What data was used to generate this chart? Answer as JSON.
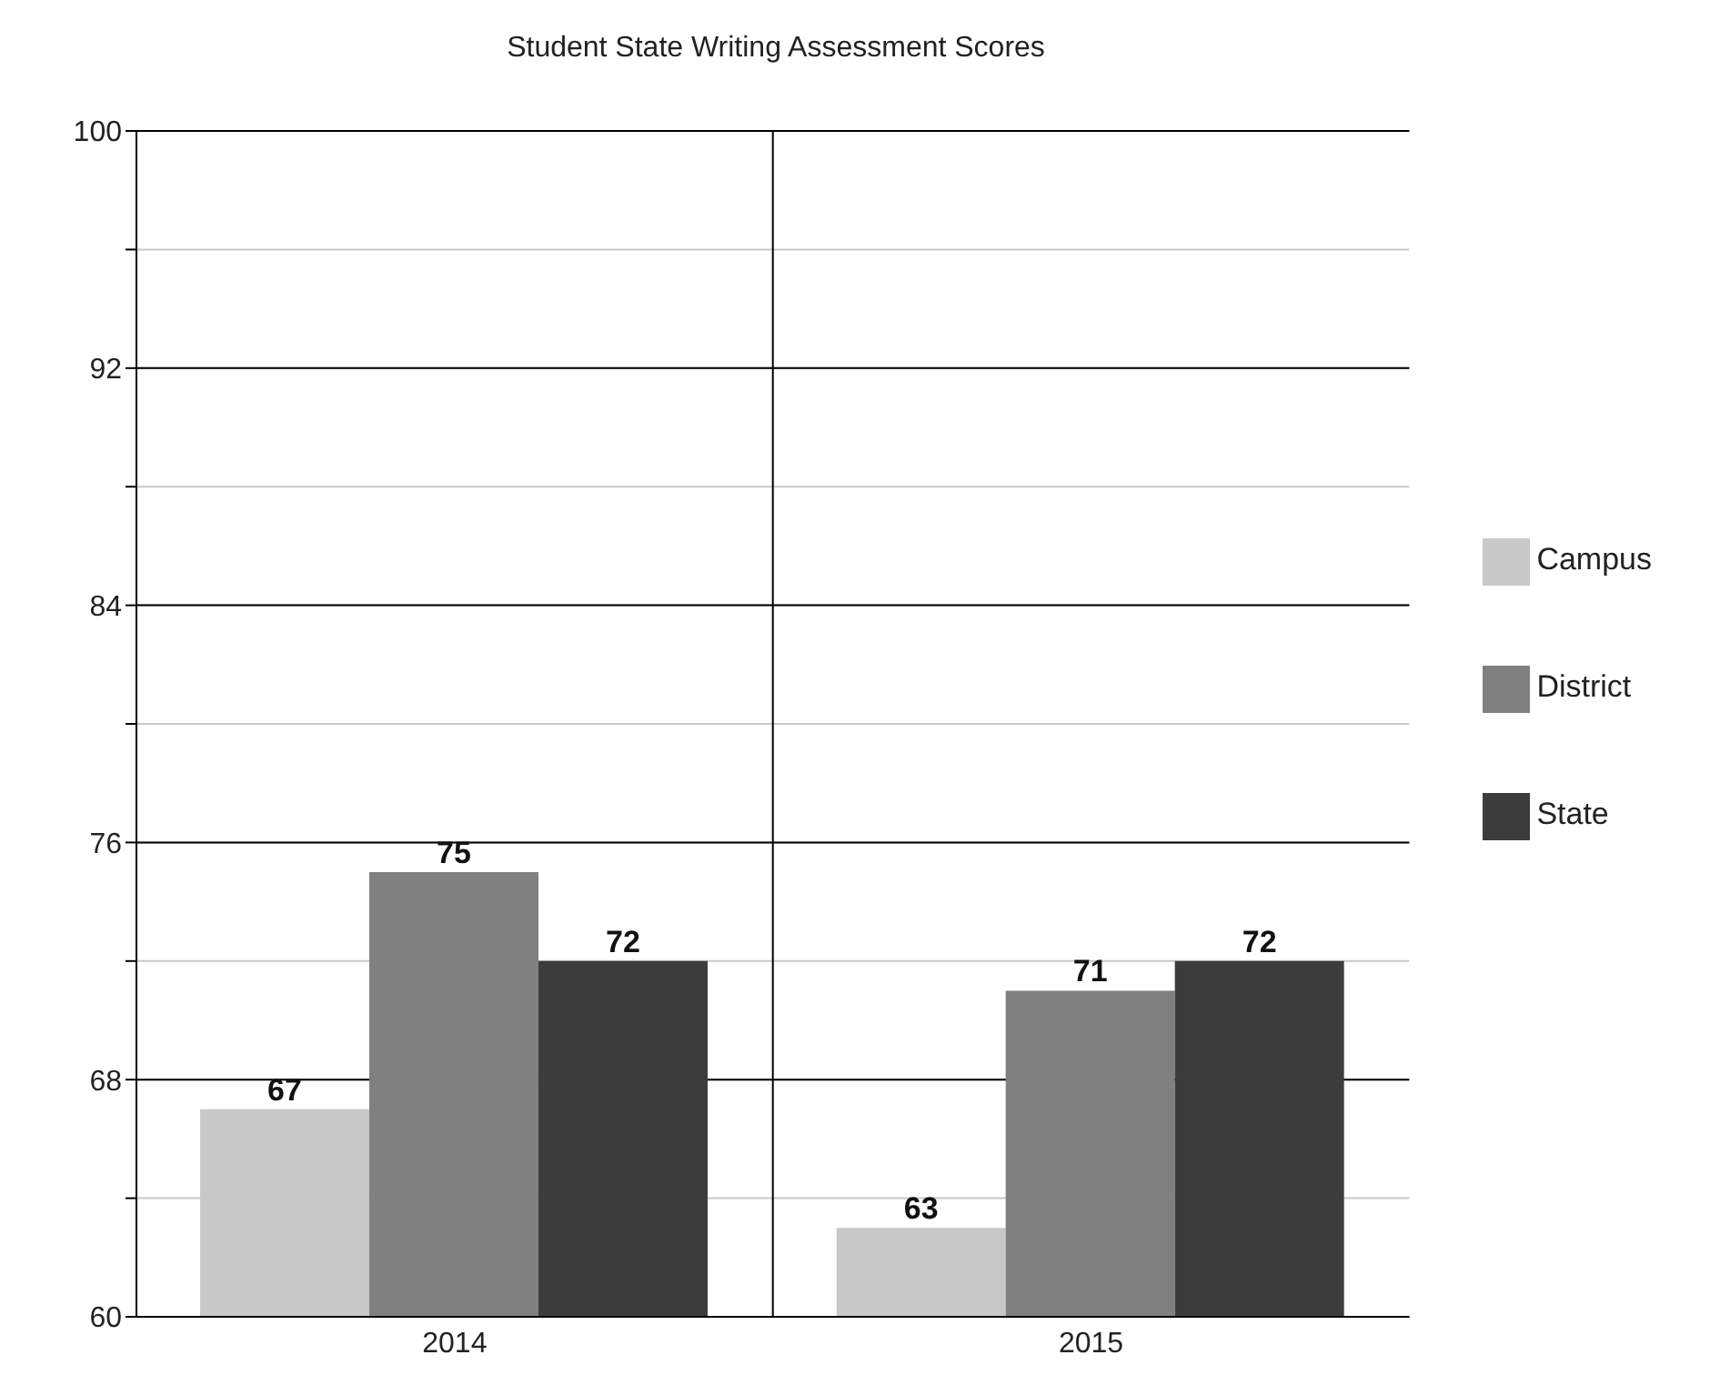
{
  "chart_data": {
    "type": "bar",
    "title": "Student State Writing Assessment Scores",
    "categories": [
      "2014",
      "2015"
    ],
    "series": [
      {
        "name": "Campus",
        "color": "#c8c8c8",
        "values": [
          67,
          63
        ]
      },
      {
        "name": "District",
        "color": "#808080",
        "values": [
          75,
          71
        ]
      },
      {
        "name": "State",
        "color": "#3c3c3c",
        "values": [
          72,
          72
        ]
      }
    ],
    "ylim": [
      60,
      100
    ],
    "yticks": [
      60,
      {
        "value": 64,
        "label": null
      },
      68,
      {
        "value": 72,
        "label": null
      },
      76,
      {
        "value": 80,
        "label": null
      },
      84,
      {
        "value": 88,
        "label": null
      },
      92,
      {
        "value": 96,
        "label": null
      },
      100
    ],
    "grid": true,
    "legend": "right",
    "data_labels": true
  }
}
